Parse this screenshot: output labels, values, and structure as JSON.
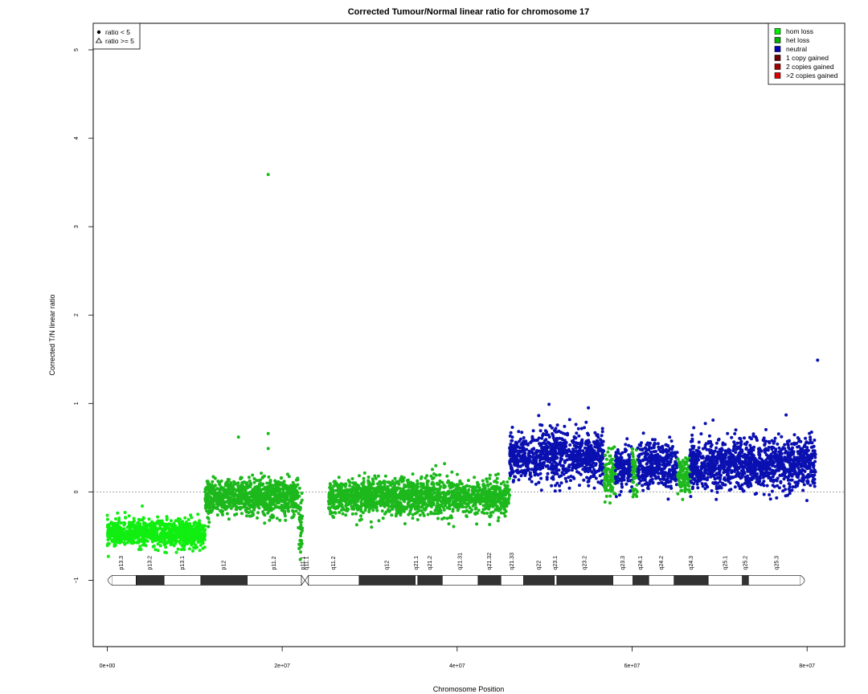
{
  "chart_data": {
    "type": "scatter",
    "title": "Corrected Tumour/Normal linear ratio for chromosome  17",
    "xlabel": "Chromosome Position",
    "ylabel": "Corrected T/N linear ratio",
    "xlim": [
      -1600000,
      84300000
    ],
    "ylim": [
      -1.75,
      5.3
    ],
    "x_ticks": [
      0,
      20000000,
      40000000,
      60000000,
      80000000
    ],
    "x_tick_labels": [
      "0e+00",
      "2e+07",
      "4e+07",
      "6e+07",
      "8e+07"
    ],
    "y_ticks": [
      -1,
      0,
      1,
      2,
      3,
      4,
      5
    ],
    "y_tick_labels": [
      "−1",
      "0",
      "1",
      "2",
      "3",
      "4",
      "5"
    ],
    "reference_line": 0,
    "shape_legend": {
      "position": "top-left",
      "items": [
        {
          "symbol": "filled-circle",
          "label": "ratio < 5"
        },
        {
          "symbol": "open-triangle",
          "label": "ratio >= 5"
        }
      ]
    },
    "legend": {
      "position": "top-right",
      "items": [
        {
          "label": "hom loss",
          "color": "#00ee00"
        },
        {
          "label": "het loss",
          "color": "#00b000"
        },
        {
          "label": "neutral",
          "color": "#0000b4"
        },
        {
          "label": "1 copy gained",
          "color": "#6e0000"
        },
        {
          "label": "2 copies gained",
          "color": "#a00000"
        },
        {
          "label": ">2 copies gained",
          "color": "#dd0000"
        }
      ]
    },
    "colors": {
      "hom_loss": "#11ee11",
      "het_loss": "#1cb81c",
      "neutral": "#0a10b0",
      "refline": "#888888"
    },
    "segments": [
      {
        "start": 0,
        "end": 11200000,
        "mean": -0.47,
        "sd": 0.075,
        "status": "hom loss",
        "n": 900
      },
      {
        "start": 11200000,
        "end": 21800000,
        "mean": -0.06,
        "sd": 0.1,
        "status": "het loss",
        "n": 950
      },
      {
        "start": 21800000,
        "end": 22300000,
        "mean": -0.35,
        "sd": 0.2,
        "status": "het loss",
        "n": 40
      },
      {
        "start": 25300000,
        "end": 46000000,
        "mean": -0.06,
        "sd": 0.1,
        "status": "het loss",
        "n": 1700
      },
      {
        "start": 46000000,
        "end": 56800000,
        "mean": 0.4,
        "sd": 0.14,
        "status": "neutral",
        "n": 900
      },
      {
        "start": 56800000,
        "end": 58100000,
        "mean": 0.18,
        "sd": 0.12,
        "status": "het loss",
        "n": 110
      },
      {
        "start": 58100000,
        "end": 60000000,
        "mean": 0.28,
        "sd": 0.13,
        "status": "neutral",
        "n": 160
      },
      {
        "start": 60000000,
        "end": 60600000,
        "mean": 0.22,
        "sd": 0.12,
        "status": "het loss",
        "n": 50
      },
      {
        "start": 60600000,
        "end": 65200000,
        "mean": 0.3,
        "sd": 0.13,
        "status": "neutral",
        "n": 380
      },
      {
        "start": 65200000,
        "end": 66600000,
        "mean": 0.18,
        "sd": 0.1,
        "status": "het loss",
        "n": 120
      },
      {
        "start": 66600000,
        "end": 81000000,
        "mean": 0.31,
        "sd": 0.14,
        "status": "neutral",
        "n": 1250
      }
    ],
    "outliers": [
      {
        "x": 18400000,
        "y": 3.59,
        "status": "het loss"
      },
      {
        "x": 18400000,
        "y": 0.66,
        "status": "het loss"
      },
      {
        "x": 18400000,
        "y": 0.49,
        "status": "het loss"
      },
      {
        "x": 15000000,
        "y": 0.62,
        "status": "het loss"
      },
      {
        "x": 81200000,
        "y": 1.49,
        "status": "neutral"
      },
      {
        "x": 50500000,
        "y": 0.99,
        "status": "neutral"
      },
      {
        "x": 55000000,
        "y": 0.95,
        "status": "neutral"
      },
      {
        "x": 77600000,
        "y": 0.87,
        "status": "neutral"
      },
      {
        "x": 4000000,
        "y": -0.16,
        "status": "hom loss"
      },
      {
        "x": 22100000,
        "y": -0.68,
        "status": "het loss"
      },
      {
        "x": 22150000,
        "y": -0.62,
        "status": "het loss"
      }
    ],
    "ideogram": {
      "y": -1,
      "bands": [
        {
          "name": "p13.3",
          "start": 0,
          "end": 3300000,
          "stain": "gneg"
        },
        {
          "name": "p13.2",
          "start": 3300000,
          "end": 6500000,
          "stain": "gpos"
        },
        {
          "name": "p13.1",
          "start": 6500000,
          "end": 10700000,
          "stain": "gneg"
        },
        {
          "name": "p12",
          "start": 10700000,
          "end": 16000000,
          "stain": "gpos"
        },
        {
          "name": "p11.2",
          "start": 16000000,
          "end": 22200000,
          "stain": "gneg"
        },
        {
          "name": "p11.1",
          "start": 22200000,
          "end": 22600000,
          "stain": "acen"
        },
        {
          "name": "q11.1",
          "start": 22600000,
          "end": 23000000,
          "stain": "acen"
        },
        {
          "name": "q11.2",
          "start": 23000000,
          "end": 28800000,
          "stain": "gneg"
        },
        {
          "name": "q12",
          "start": 28800000,
          "end": 35200000,
          "stain": "gpos"
        },
        {
          "name": "q21.1",
          "start": 35200000,
          "end": 35500000,
          "stain": "gneg"
        },
        {
          "name": "q21.2",
          "start": 35500000,
          "end": 38300000,
          "stain": "gpos"
        },
        {
          "name": "q21.31",
          "start": 38300000,
          "end": 42400000,
          "stain": "gneg"
        },
        {
          "name": "q21.32",
          "start": 42400000,
          "end": 45000000,
          "stain": "gpos"
        },
        {
          "name": "q21.33",
          "start": 45000000,
          "end": 47600000,
          "stain": "gneg"
        },
        {
          "name": "q22",
          "start": 47600000,
          "end": 51100000,
          "stain": "gpos"
        },
        {
          "name": "q23.1",
          "start": 51100000,
          "end": 51400000,
          "stain": "gneg"
        },
        {
          "name": "q23.2",
          "start": 51400000,
          "end": 57800000,
          "stain": "gpos"
        },
        {
          "name": "q23.3",
          "start": 57800000,
          "end": 60100000,
          "stain": "gneg"
        },
        {
          "name": "q24.1",
          "start": 60100000,
          "end": 61900000,
          "stain": "gpos"
        },
        {
          "name": "q24.2",
          "start": 61900000,
          "end": 64800000,
          "stain": "gneg"
        },
        {
          "name": "q24.3",
          "start": 64800000,
          "end": 68700000,
          "stain": "gpos"
        },
        {
          "name": "q25.1",
          "start": 68700000,
          "end": 72600000,
          "stain": "gneg"
        },
        {
          "name": "q25.2",
          "start": 72600000,
          "end": 73300000,
          "stain": "gpos"
        },
        {
          "name": "q25.3",
          "start": 73300000,
          "end": 79800000,
          "stain": "gneg"
        }
      ]
    }
  }
}
